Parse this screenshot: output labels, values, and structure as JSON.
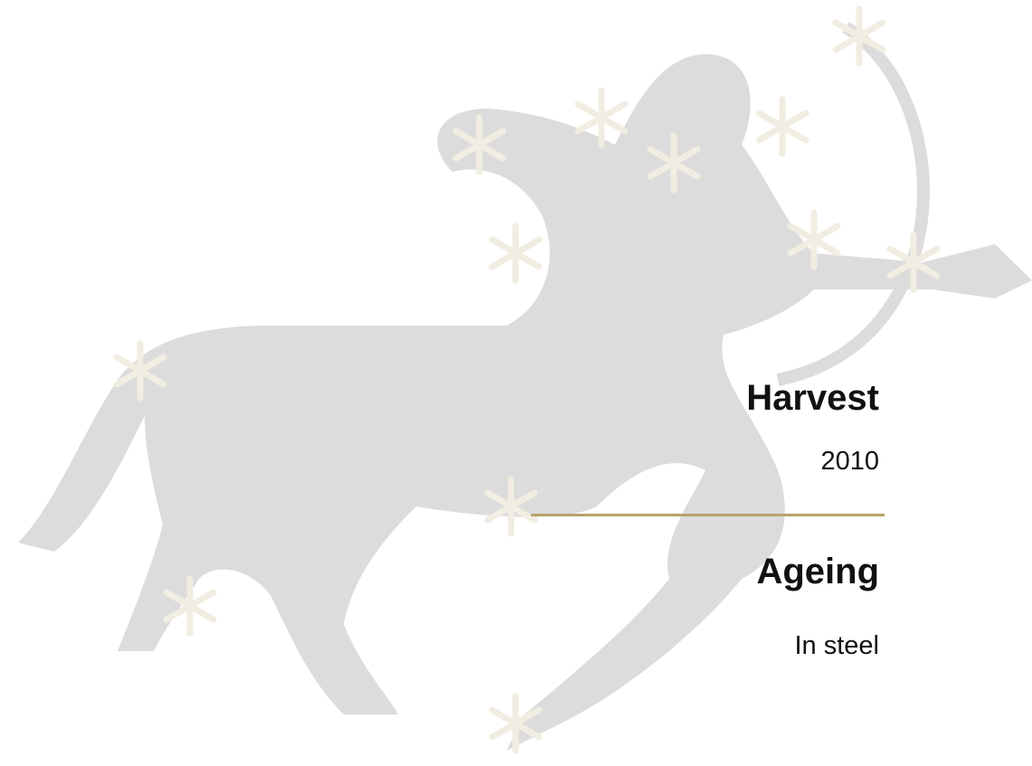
{
  "sections": [
    {
      "heading": "Harvest",
      "text": "2010"
    },
    {
      "heading": "Ageing",
      "text": "In steel"
    }
  ]
}
